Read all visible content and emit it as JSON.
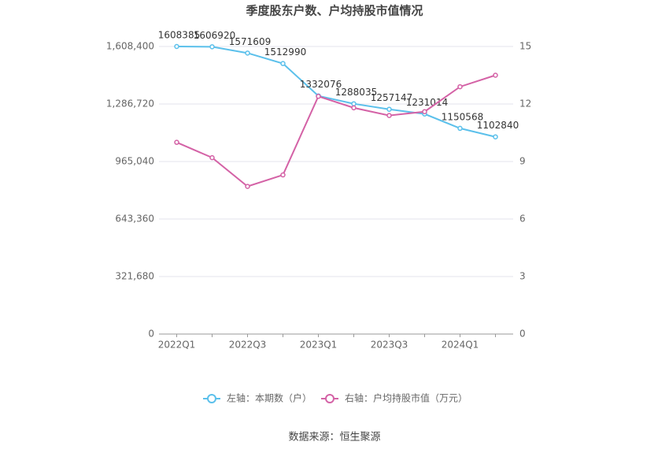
{
  "chart_data": {
    "type": "line",
    "title": "季度股东户数、户均持股市值情况",
    "categories": [
      "2022Q1",
      null,
      "2022Q3",
      null,
      "2023Q1",
      null,
      "2023Q3",
      null,
      "2024Q1",
      null
    ],
    "series": [
      {
        "name": "左轴：本期数（户）",
        "color": "#5bc0eb",
        "values": [
          1608385,
          1606920,
          1571609,
          1512990,
          1332076,
          1288035,
          1257147,
          1231014,
          1150568,
          1102840
        ]
      },
      {
        "name": "右轴：户均持股市值（万元）",
        "color": "#d462a6",
        "axis": "y2",
        "values": [
          10.0,
          9.2,
          7.7,
          8.3,
          12.4,
          11.8,
          11.4,
          11.6,
          12.9,
          13.5
        ]
      }
    ],
    "ylim": [
      0,
      1608400
    ],
    "yticks": [
      0,
      {
        "value": 321680,
        "label": "321,680"
      },
      {
        "value": 643360,
        "label": "643,360"
      },
      {
        "value": 965040,
        "label": "965,040"
      },
      {
        "value": 1286720,
        "label": "1,286,720"
      },
      {
        "value": 1608400,
        "label": "1,608,400"
      }
    ],
    "y2lim": [
      0,
      15
    ],
    "y2ticks": [
      0,
      3,
      6,
      9,
      12,
      15
    ],
    "grid": true,
    "legend": "bottom",
    "source": "数据来源：恒生聚源"
  }
}
